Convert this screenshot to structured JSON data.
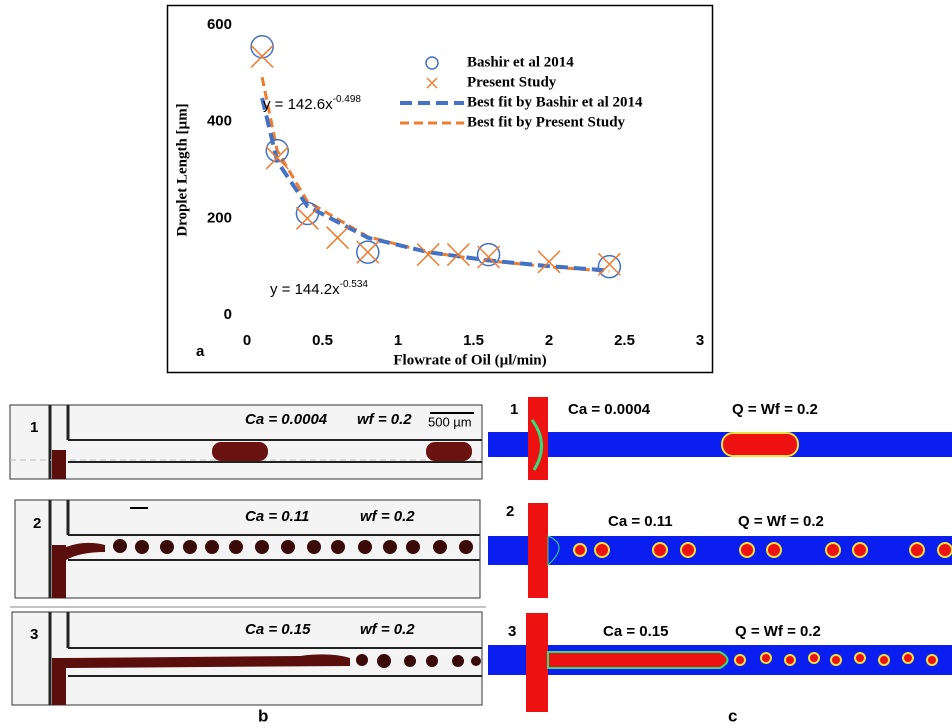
{
  "chart_data": {
    "type": "scatter",
    "ylabel": "Droplet Length [µm]",
    "xlabel": "Flowrate of Oil (µl/min)",
    "panel_label": "a",
    "xlim": [
      0,
      3
    ],
    "ylim": [
      0,
      600
    ],
    "xticks": [
      0,
      0.5,
      1,
      1.5,
      2,
      2.5,
      3
    ],
    "yticks": [
      0,
      200,
      400,
      600
    ],
    "grid": false,
    "series": [
      {
        "name": "Bashir et al 2014",
        "color": "#4472c4",
        "style": "circle",
        "x": [
          0.1,
          0.2,
          0.4,
          0.8,
          1.6,
          2.4
        ],
        "values": [
          555,
          340,
          210,
          130,
          125,
          100
        ]
      },
      {
        "name": "Present Study",
        "color": "#ed7d31",
        "style": "cross",
        "x": [
          0.1,
          0.2,
          0.4,
          0.6,
          0.8,
          1.2,
          1.4,
          1.6,
          2.0,
          2.4
        ],
        "values": [
          535,
          325,
          200,
          160,
          130,
          125,
          125,
          120,
          110,
          105
        ]
      },
      {
        "name": "Best fit by Bashir et al 2014",
        "color": "#4472c4",
        "style": "dash-thick",
        "x": [
          0.1,
          0.2,
          0.4,
          0.8,
          1.2,
          1.6,
          2.0,
          2.4
        ],
        "values": [
          449,
          318,
          225,
          160,
          130,
          113,
          101,
          92
        ]
      },
      {
        "name": "Best fit by Present Study",
        "color": "#ed7d31",
        "style": "dash",
        "x": [
          0.1,
          0.2,
          0.4,
          0.8,
          1.2,
          1.6,
          2.0,
          2.4
        ],
        "values": [
          492,
          340,
          235,
          162,
          130,
          112,
          100,
          90
        ]
      }
    ],
    "annotations": [
      {
        "text": "y = 142.6x",
        "exponent": "-0.498"
      },
      {
        "text": "y = 144.2x",
        "exponent": "-0.534"
      }
    ]
  },
  "panel_b": {
    "label": "b",
    "scale_bar": "500 µm",
    "rows": [
      {
        "number": "1",
        "ca": "Ca = 0.0004",
        "wf": "wf = 0.2"
      },
      {
        "number": "2",
        "ca": "Ca = 0.11",
        "wf": "wf = 0.2"
      },
      {
        "number": "3",
        "ca": "Ca = 0.15",
        "wf": "wf = 0.2"
      }
    ]
  },
  "panel_c": {
    "label": "c",
    "rows": [
      {
        "number": "1",
        "ca": "Ca = 0.0004",
        "wf": "Q = Wf = 0.2"
      },
      {
        "number": "2",
        "ca": "Ca = 0.11",
        "wf": "Q = Wf = 0.2"
      },
      {
        "number": "3",
        "ca": "Ca = 0.15",
        "wf": "Q = Wf = 0.2"
      }
    ]
  }
}
